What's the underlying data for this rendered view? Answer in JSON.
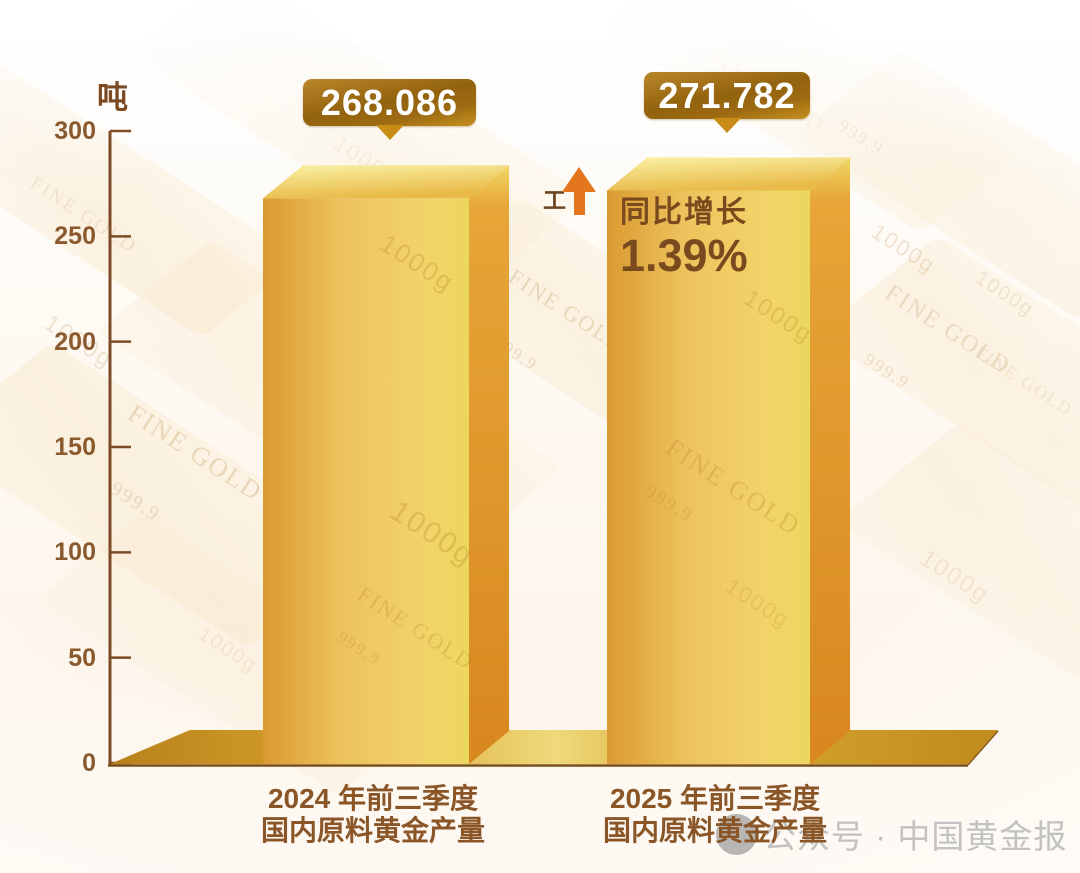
{
  "unit_label": "吨",
  "watermark": {
    "icon": "public-account-logo",
    "text": "公众号 · 中国黄金报",
    "color": "#c2c2c2"
  },
  "annotation": {
    "line1": "同比增长",
    "line2": "1.39%",
    "marker_glyph": "工",
    "arrow_icon": "up-arrow",
    "arrow_color": "#e4761d"
  },
  "colors": {
    "axis_brown": "#7b4b28",
    "label_brown": "#8a5627",
    "badge_gold_dark": "#93620e",
    "badge_gold_light": "#c6911f",
    "bar_front_left": "#db9a31",
    "bar_front_right": "#ecd75e",
    "bar_side": "#d8871e",
    "bar_top_light": "#faf2a6",
    "platform_gold": "#d9a52e"
  },
  "chart_data": {
    "type": "bar",
    "style": "3d-gold-columns",
    "unit": "吨",
    "categories": [
      [
        "2024 年前三季度",
        "国内原料黄金产量"
      ],
      [
        "2025 年前三季度",
        "国内原料黄金产量"
      ]
    ],
    "values": [
      268.086,
      271.782
    ],
    "value_labels": [
      "268.086",
      "271.782"
    ],
    "yoy_growth_percent": 1.39,
    "ylim": [
      0,
      300
    ],
    "yticks": [
      0,
      50,
      100,
      150,
      200,
      250,
      300
    ],
    "grid": false,
    "legend": false,
    "background_texture_labels": [
      "FINE GOLD",
      "999.9",
      "1000g"
    ]
  }
}
